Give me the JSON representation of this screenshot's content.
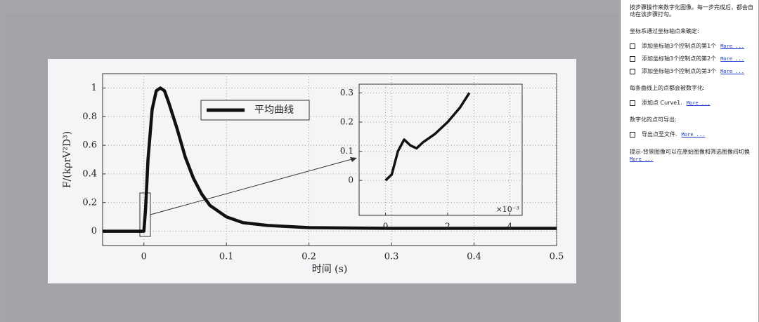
{
  "chart_data": [
    {
      "type": "line",
      "xlabel": "时间 (s)",
      "ylabel": "F/(kρrV²D³)",
      "legend": "平均曲线",
      "x": [
        -0.05,
        0,
        0.002,
        0.005,
        0.01,
        0.015,
        0.02,
        0.025,
        0.03,
        0.04,
        0.05,
        0.06,
        0.07,
        0.08,
        0.1,
        0.12,
        0.15,
        0.2,
        0.3,
        0.4,
        0.5
      ],
      "values": [
        0,
        0,
        0.15,
        0.5,
        0.85,
        0.98,
        1.0,
        0.98,
        0.9,
        0.72,
        0.52,
        0.37,
        0.26,
        0.18,
        0.1,
        0.06,
        0.04,
        0.025,
        0.02,
        0.02,
        0.02
      ],
      "color": "#111111",
      "xlim": [
        -0.05,
        0.5
      ],
      "ylim": [
        -0.1,
        1.1
      ],
      "xticks": [
        0,
        0.1,
        0.2,
        0.3,
        0.4,
        0.5
      ],
      "yticks": [
        0,
        0.2,
        0.4,
        0.6,
        0.8,
        1
      ],
      "grid": true
    },
    {
      "type": "line",
      "xlabel": "×10⁻³",
      "x": [
        0,
        0.2,
        0.4,
        0.6,
        0.8,
        1.0,
        1.2,
        1.6,
        2.0,
        2.4,
        2.7
      ],
      "values": [
        0,
        0.02,
        0.1,
        0.14,
        0.12,
        0.11,
        0.13,
        0.16,
        0.2,
        0.25,
        0.3
      ],
      "color": "#111111",
      "xlim": [
        -0.85,
        4.4
      ],
      "ylim": [
        -0.12,
        0.33
      ],
      "xticks": [
        0,
        2,
        4
      ],
      "yticks": [
        0,
        0.1,
        0.2,
        0.3
      ],
      "grid": true
    }
  ],
  "panel": {
    "intro": "按步骤操作来数字化图像。每一步完成后，都会自动在该步骤打勾。",
    "sections": [
      {
        "heading": "坐标系通过坐标轴点来确定:",
        "items": [
          {
            "text": "添加坐标轴3个控制点的第1个",
            "link": "More ..."
          },
          {
            "text": "添加坐标轴3个控制点的第2个",
            "link": "More ..."
          },
          {
            "text": "添加坐标轴3个控制点的第3个",
            "link": "More ..."
          }
        ]
      },
      {
        "heading": "每条曲线上的点都会被数字化:",
        "items": [
          {
            "text": "添加点 Curve1.",
            "link": "More ..."
          }
        ]
      },
      {
        "heading": "数字化的点可导出:",
        "items": [
          {
            "text": "导出点至文件.",
            "link": "More ..."
          }
        ]
      }
    ],
    "tip": "提示-背景图像可以在原始图像和筛选图像间切换",
    "tip_link": "More ..."
  }
}
